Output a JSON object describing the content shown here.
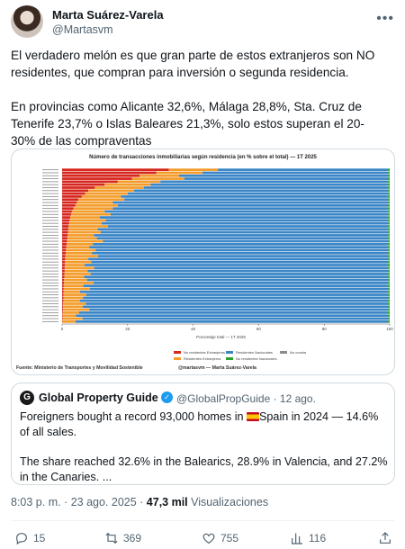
{
  "author": {
    "name": "Marta Suárez-Varela",
    "handle": "@Martasvm"
  },
  "tweet": {
    "paragraph1": "El verdadero melón es que gran parte de estos extranjeros son NO residentes, que compran para inversión o segunda residencia.",
    "paragraph2": "En provincias como Alicante 32,6%, Málaga 28,8%, Sta. Cruz de Tenerife 23,7% o Islas Baleares 21,3%, solo estos superan el 20-30% de las compraventas"
  },
  "chart": {
    "title": "Número de transacciones inmobiliarias según residencia (en % sobre el total) — 1T 2025",
    "xlabel": "Porcentaje total — 1T 2025",
    "source": "Fuente: Ministerio de Transportes y Movilidad Sostenible",
    "credit": "@martasvm — Marta Suárez-Varela",
    "legend": [
      "No residentes Extranjeros",
      "Residentes Extranjeros",
      "Residentes Nacionales",
      "No residentes Nacionales",
      "No consta"
    ]
  },
  "chart_data": {
    "type": "bar",
    "title": "Número de transacciones inmobiliarias según residencia (en % sobre el total) — 1T 2025",
    "xlabel": "Porcentaje total — 1T 2025",
    "ylabel": "",
    "xlim": [
      0,
      100
    ],
    "xticks": [
      0,
      20,
      40,
      60,
      80,
      100
    ],
    "stacked": true,
    "orientation": "horizontal",
    "legend_position": "bottom",
    "colors": {
      "No residentes Extranjeros": "#d7261e",
      "Residentes Extranjeros": "#f39c2b",
      "Residentes Nacionales": "#3a85c6",
      "No residentes Nacionales": "#2ca02c",
      "No consta": "#8c8c8c"
    },
    "series": [
      {
        "name": "No residentes Extranjeros",
        "values": [
          32.6,
          28.8,
          23.7,
          21.3,
          17,
          13,
          10,
          8,
          7,
          6,
          5,
          4.5,
          4,
          3.5,
          3,
          2.8,
          2.5,
          2.3,
          2.1,
          2,
          1.9,
          1.8,
          1.7,
          1.6,
          1.5,
          1.4,
          1.3,
          1.2,
          1.1,
          1,
          1,
          0.9,
          0.9,
          0.8,
          0.8,
          0.7,
          0.7,
          0.6,
          0.6,
          0.5,
          0.5,
          0.5,
          0.4,
          0.4,
          0.4,
          0.3,
          0.3,
          0.3,
          0.2,
          0.2,
          0.2,
          0.1
        ]
      },
      {
        "name": "Residentes Extranjeros",
        "values": [
          15,
          14,
          12,
          16,
          13,
          14,
          15,
          14,
          13,
          12,
          14,
          11,
          13,
          12,
          10,
          12,
          9,
          11,
          10,
          12,
          9,
          10,
          8,
          9,
          11,
          8,
          7,
          9,
          8,
          10,
          7,
          8,
          6,
          9,
          7,
          8,
          6,
          7,
          9,
          6,
          8,
          5,
          7,
          6,
          5,
          7,
          6,
          8,
          5,
          4,
          6,
          4
        ]
      },
      {
        "name": "No residentes Nacionales",
        "values": [
          0.6,
          0.5,
          0.4,
          0.8,
          0.5,
          0.6,
          0.5,
          0.5,
          0.4,
          0.6,
          0.5,
          0.4,
          0.5,
          0.6,
          0.4,
          0.5,
          0.5,
          0.6,
          0.4,
          0.5,
          0.6,
          0.4,
          0.5,
          0.5,
          0.4,
          0.6,
          0.5,
          0.4,
          0.5,
          0.5,
          0.4,
          0.5,
          0.6,
          0.5,
          0.4,
          0.5,
          0.5,
          0.4,
          0.5,
          0.6,
          0.4,
          0.5,
          0.5,
          0.4,
          0.5,
          0.5,
          0.4,
          0.5,
          0.6,
          0.5,
          0.4,
          0.5
        ]
      }
    ]
  },
  "quote": {
    "name": "Global Property Guide",
    "handle_time": "@GlobalPropGuide · 12 ago.",
    "text_before_flag": "Foreigners bought a record 93,000 homes in ",
    "text_after_flag": "Spain in 2024 — 14.6% of all sales.",
    "text2": "The share reached 32.6% in the Balearics, 28.9% in Valencia, and 27.2% in the Canaries.  ..."
  },
  "meta": {
    "datetime": "8:03 p. m. · 23 ago. 2025 · ",
    "views_count": "47,3 mil",
    "views_label": " Visualizaciones"
  },
  "actions": {
    "replies": "15",
    "reposts": "369",
    "likes": "755",
    "bookmarks": "116"
  }
}
